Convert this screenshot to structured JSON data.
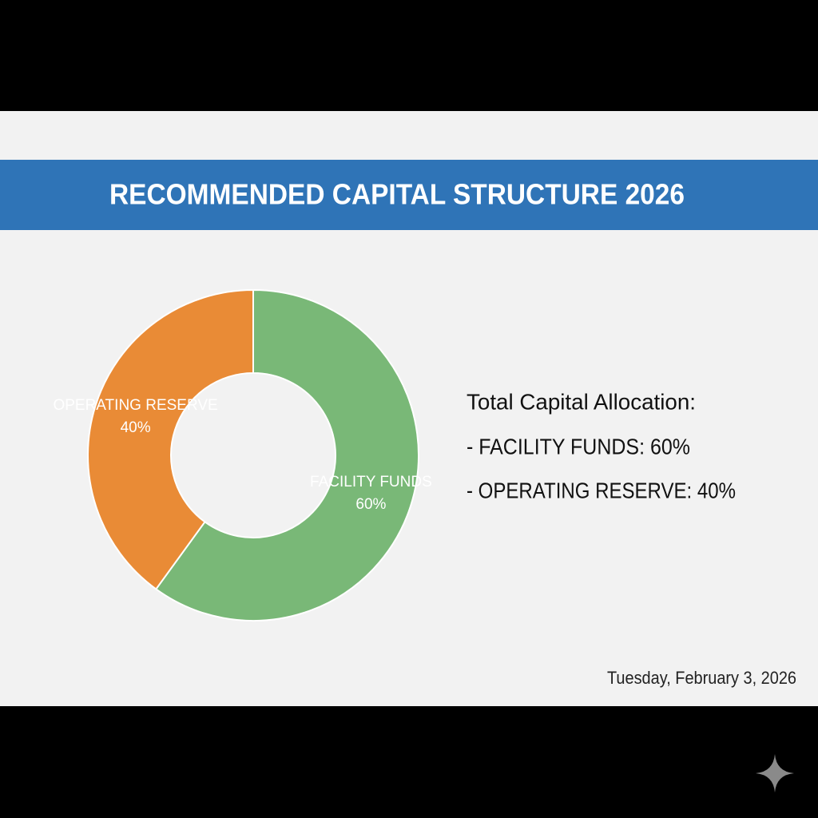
{
  "chart_data": {
    "type": "donut",
    "title": "RECOMMENDED CAPITAL STRUCTURE 2026",
    "categories": [
      "FACILITY FUNDS",
      "OPERATING RESERVE"
    ],
    "values": [
      60,
      40
    ],
    "value_labels": [
      "60%",
      "40%"
    ],
    "colors": [
      "#79b877",
      "#e98b36"
    ],
    "summary_title": "Total Capital Allocation:",
    "summary_items": [
      "- FACILITY FUNDS: 60%",
      "- OPERATING RESERVE: 40%"
    ],
    "date": "Tuesday, February 3, 2026"
  }
}
